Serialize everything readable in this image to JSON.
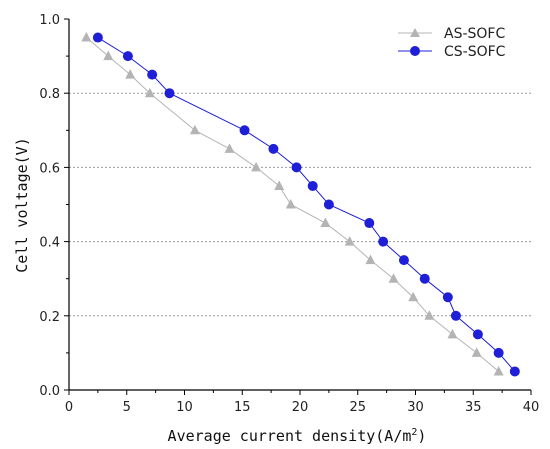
{
  "chart_data": {
    "type": "line",
    "xlabel": "Average current density(A/m",
    "xlabel_sup": "2",
    "xlabel_suffix": ")",
    "ylabel": "Cell voltage(V)",
    "xlim": [
      0,
      40
    ],
    "ylim": [
      0,
      1.0
    ],
    "xticks": [
      "0",
      "5",
      "10",
      "15",
      "20",
      "25",
      "30",
      "35",
      "40"
    ],
    "yticks": [
      "0.0",
      "0.2",
      "0.4",
      "0.6",
      "0.8",
      "1.0"
    ],
    "grid": "horizontal dashed",
    "legend_position": "top-right",
    "series": [
      {
        "name": "AS-SOFC",
        "color": "#b4b4b4",
        "marker": "triangle",
        "points": [
          [
            1.5,
            0.95
          ],
          [
            3.4,
            0.9
          ],
          [
            5.3,
            0.85
          ],
          [
            7.0,
            0.8
          ],
          [
            10.9,
            0.7
          ],
          [
            13.9,
            0.65
          ],
          [
            16.2,
            0.6
          ],
          [
            18.2,
            0.55
          ],
          [
            19.2,
            0.5
          ],
          [
            22.2,
            0.45
          ],
          [
            24.3,
            0.4
          ],
          [
            26.1,
            0.35
          ],
          [
            28.1,
            0.3
          ],
          [
            29.8,
            0.25
          ],
          [
            31.2,
            0.2
          ],
          [
            33.2,
            0.15
          ],
          [
            35.3,
            0.1
          ],
          [
            37.2,
            0.05
          ]
        ]
      },
      {
        "name": "CS-SOFC",
        "color": "#1f1fd8",
        "marker": "circle",
        "points": [
          [
            2.5,
            0.95
          ],
          [
            5.1,
            0.9
          ],
          [
            7.2,
            0.85
          ],
          [
            8.7,
            0.8
          ],
          [
            15.2,
            0.7
          ],
          [
            17.7,
            0.65
          ],
          [
            19.7,
            0.6
          ],
          [
            21.1,
            0.55
          ],
          [
            22.5,
            0.5
          ],
          [
            26.0,
            0.45
          ],
          [
            27.2,
            0.4
          ],
          [
            29.0,
            0.35
          ],
          [
            30.8,
            0.3
          ],
          [
            32.8,
            0.25
          ],
          [
            33.5,
            0.2
          ],
          [
            35.4,
            0.15
          ],
          [
            37.2,
            0.1
          ],
          [
            38.6,
            0.05
          ]
        ]
      }
    ]
  }
}
